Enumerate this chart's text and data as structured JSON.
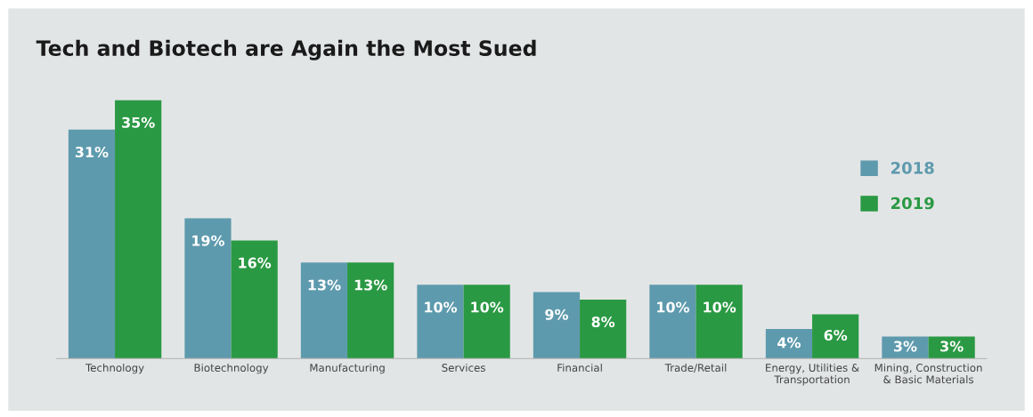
{
  "chart_data": {
    "type": "bar",
    "title": "Tech and Biotech are Again the Most Sued",
    "categories": [
      "Technology",
      "Biotechnology",
      "Manufacturing",
      "Services",
      "Financial",
      "Trade/Retail",
      "Energy, Utilities &\nTransportation",
      "Mining, Construction\n& Basic Materials"
    ],
    "series": [
      {
        "name": "2018",
        "color": "#5e9aad",
        "values": [
          31,
          19,
          13,
          10,
          9,
          10,
          4,
          3
        ],
        "value_labels": [
          "31%",
          "19%",
          "13%",
          "10%",
          "9%",
          "10%",
          "4%",
          "3%"
        ]
      },
      {
        "name": "2019",
        "color": "#2a9943",
        "values": [
          35,
          16,
          13,
          10,
          8,
          10,
          6,
          3
        ],
        "value_labels": [
          "35%",
          "16%",
          "13%",
          "10%",
          "8%",
          "10%",
          "6%",
          "3%"
        ]
      }
    ],
    "legend": "top right",
    "grid": false
  }
}
